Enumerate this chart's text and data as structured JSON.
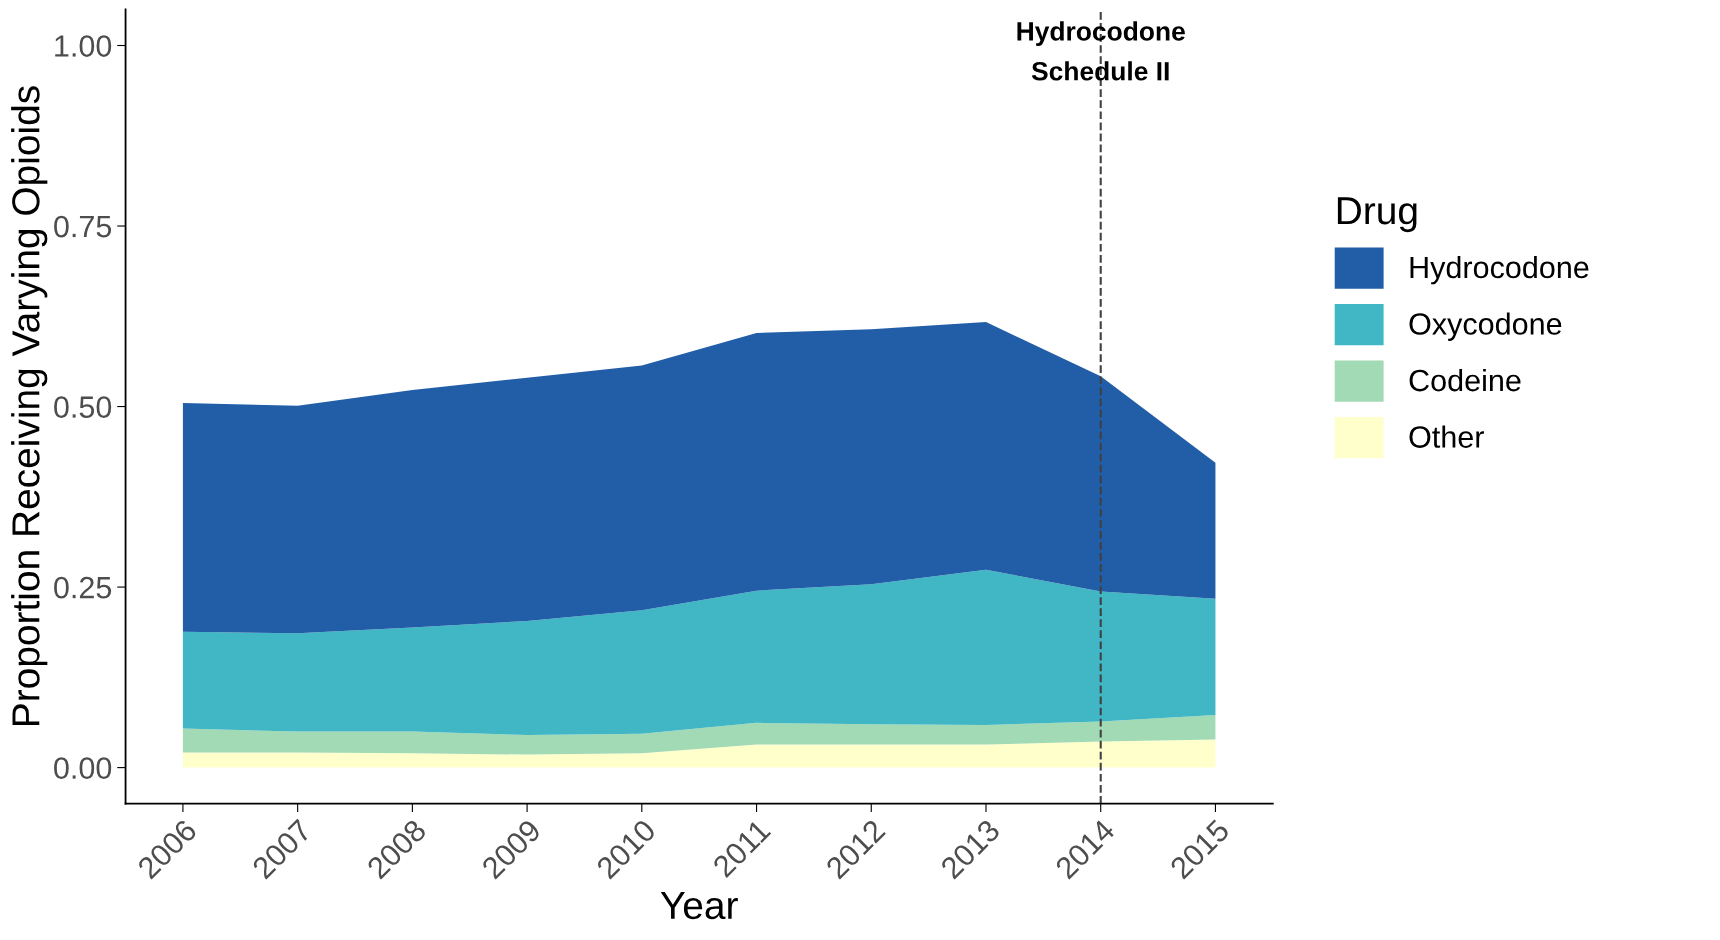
{
  "chart_data": {
    "type": "area",
    "stacked": true,
    "xlabel": "Year",
    "ylabel": "Proportion Receiving Varying Opioids",
    "legend_title": "Drug",
    "legend": "right",
    "grid": false,
    "x": [
      2006,
      2007,
      2008,
      2009,
      2010,
      2011,
      2012,
      2013,
      2014,
      2015
    ],
    "xlim": [
      2005.5,
      2015.5
    ],
    "xticks": [
      2006,
      2007,
      2008,
      2009,
      2010,
      2011,
      2012,
      2013,
      2014,
      2015
    ],
    "ylim": [
      -0.05,
      1.05
    ],
    "yticks": [
      {
        "value": 0,
        "label": "0.00"
      },
      {
        "value": 0.25,
        "label": "0.25"
      },
      {
        "value": 0.5,
        "label": "0.50"
      },
      {
        "value": 0.75,
        "label": "0.75"
      },
      {
        "value": 1,
        "label": "1.00"
      }
    ],
    "series": [
      {
        "name": "Other",
        "color": "#ffffcc",
        "values": [
          0.021,
          0.021,
          0.02,
          0.018,
          0.02,
          0.032,
          0.032,
          0.032,
          0.036,
          0.039
        ]
      },
      {
        "name": "Codeine",
        "color": "#a1dab4",
        "values": [
          0.033,
          0.029,
          0.03,
          0.027,
          0.027,
          0.03,
          0.028,
          0.027,
          0.028,
          0.034
        ]
      },
      {
        "name": "Oxycodone",
        "color": "#41b6c4",
        "values": [
          0.134,
          0.136,
          0.144,
          0.158,
          0.171,
          0.183,
          0.194,
          0.215,
          0.18,
          0.161
        ]
      },
      {
        "name": "Hydrocodone",
        "color": "#225ea8",
        "values": [
          0.317,
          0.315,
          0.329,
          0.337,
          0.339,
          0.357,
          0.353,
          0.343,
          0.298,
          0.188
        ]
      }
    ],
    "ref_lines": [
      {
        "axis": "x",
        "value": 2014,
        "label": "Hydrocodone\nSchedule II",
        "color": "#404040",
        "line_style": "dashed"
      }
    ]
  }
}
